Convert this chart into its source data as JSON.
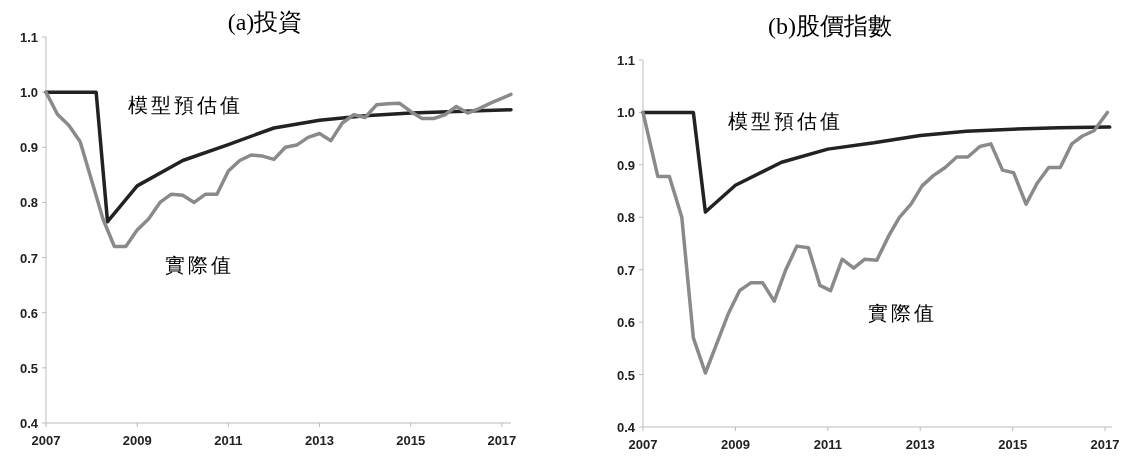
{
  "chart_data": [
    {
      "type": "line",
      "title": "(a)投資",
      "xlim": [
        2007,
        2017.2
      ],
      "ylim": [
        0.4,
        1.1
      ],
      "xticks": [
        2007,
        2009,
        2011,
        2013,
        2015,
        2017
      ],
      "yticks": [
        0.4,
        0.5,
        0.6,
        0.7,
        0.8,
        0.9,
        {
          "value": 1,
          "label": "1.0"
        },
        1.1
      ],
      "series": [
        {
          "name": "模型預估值",
          "color": "#222222",
          "x": [
            2007,
            2008.1,
            2008.35,
            2009,
            2010,
            2011,
            2012,
            2013,
            2014,
            2015,
            2016,
            2017.2
          ],
          "values": [
            1,
            1,
            0.765,
            0.83,
            0.876,
            0.905,
            0.935,
            0.949,
            0.957,
            0.962,
            0.965,
            0.968
          ]
        },
        {
          "name": "實際值",
          "color": "#8a8a8a",
          "x": [
            2007,
            2007.25,
            2007.5,
            2007.75,
            2008,
            2008.25,
            2008.5,
            2008.75,
            2009,
            2009.25,
            2009.5,
            2009.75,
            2010,
            2010.25,
            2010.5,
            2010.75,
            2011,
            2011.25,
            2011.5,
            2011.75,
            2012,
            2012.25,
            2012.5,
            2012.75,
            2013,
            2013.25,
            2013.5,
            2013.75,
            2014,
            2014.25,
            2014.5,
            2014.75,
            2015,
            2015.25,
            2015.5,
            2015.75,
            2016,
            2016.25,
            2016.5,
            2016.75,
            2017.2
          ],
          "values": [
            1,
            0.96,
            0.94,
            0.91,
            0.84,
            0.77,
            0.72,
            0.72,
            0.75,
            0.77,
            0.8,
            0.815,
            0.813,
            0.8,
            0.815,
            0.815,
            0.857,
            0.876,
            0.886,
            0.884,
            0.878,
            0.9,
            0.904,
            0.918,
            0.925,
            0.912,
            0.944,
            0.959,
            0.954,
            0.977,
            0.979,
            0.98,
            0.965,
            0.952,
            0.952,
            0.959,
            0.974,
            0.962,
            0.97,
            0.98,
            0.996
          ]
        }
      ]
    },
    {
      "type": "line",
      "title": "(b)股價指數",
      "xlim": [
        2007,
        2017.15
      ],
      "ylim": [
        0.4,
        1.1
      ],
      "xticks": [
        2007,
        2009,
        2011,
        2013,
        2015,
        2017
      ],
      "yticks": [
        0.4,
        0.5,
        0.6,
        0.7,
        0.8,
        0.9,
        {
          "value": 1,
          "label": "1.0"
        },
        1.1
      ],
      "series": [
        {
          "name": "模型預估值",
          "color": "#222222",
          "x": [
            2007,
            2008.09,
            2008.35,
            2009,
            2010,
            2011,
            2012,
            2013,
            2014,
            2015,
            2016,
            2017.1
          ],
          "values": [
            1,
            1,
            0.81,
            0.861,
            0.905,
            0.93,
            0.942,
            0.956,
            0.964,
            0.968,
            0.971,
            0.972
          ]
        },
        {
          "name": "實際值",
          "color": "#8a8a8a",
          "x": [
            2007,
            2007.32,
            2007.57,
            2007.84,
            2008.09,
            2008.35,
            2008.6,
            2008.84,
            2009.09,
            2009.33,
            2009.59,
            2009.84,
            2010.09,
            2010.33,
            2010.58,
            2010.83,
            2011.06,
            2011.31,
            2011.56,
            2011.8,
            2012.06,
            2012.32,
            2012.55,
            2012.8,
            2013.04,
            2013.29,
            2013.54,
            2013.79,
            2014.03,
            2014.29,
            2014.53,
            2014.78,
            2015.02,
            2015.29,
            2015.53,
            2015.78,
            2016.03,
            2016.28,
            2016.51,
            2016.76,
            2017.05
          ],
          "values": [
            1,
            0.878,
            0.878,
            0.8,
            0.57,
            0.503,
            0.56,
            0.615,
            0.66,
            0.675,
            0.675,
            0.64,
            0.7,
            0.745,
            0.742,
            0.67,
            0.66,
            0.72,
            0.703,
            0.72,
            0.718,
            0.765,
            0.8,
            0.825,
            0.86,
            0.88,
            0.895,
            0.915,
            0.915,
            0.935,
            0.94,
            0.89,
            0.885,
            0.825,
            0.865,
            0.895,
            0.895,
            0.94,
            0.955,
            0.965,
            1
          ]
        }
      ]
    }
  ]
}
